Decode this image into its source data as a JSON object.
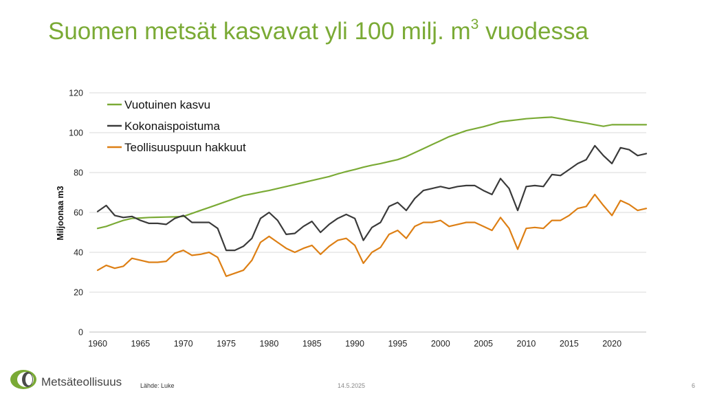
{
  "slide": {
    "title_main": "Suomen metsät kasvavat yli 100 milj. m",
    "title_sup": "3",
    "title_end": " vuodessa",
    "source": "Lähde: Luke",
    "date": "14.5.2025",
    "page": "6",
    "brand": "Metsäteollisuus",
    "title_color": "#7aaa35"
  },
  "chart_data": {
    "type": "line",
    "title": "",
    "xlabel": "",
    "ylabel": "Miljoonaa m3",
    "xlim": [
      1960,
      2024
    ],
    "ylim": [
      0,
      120
    ],
    "yticks": [
      0,
      20,
      40,
      60,
      80,
      100,
      120
    ],
    "xticks": [
      1960,
      1965,
      1970,
      1975,
      1980,
      1985,
      1990,
      1995,
      2000,
      2005,
      2010,
      2015,
      2020
    ],
    "grid": "horizontal",
    "legend_position": "top-left",
    "x": [
      1960,
      1961,
      1962,
      1963,
      1964,
      1965,
      1966,
      1967,
      1968,
      1969,
      1970,
      1971,
      1972,
      1973,
      1974,
      1975,
      1976,
      1977,
      1978,
      1979,
      1980,
      1981,
      1982,
      1983,
      1984,
      1985,
      1986,
      1987,
      1988,
      1989,
      1990,
      1991,
      1992,
      1993,
      1994,
      1995,
      1996,
      1997,
      1998,
      1999,
      2000,
      2001,
      2002,
      2003,
      2004,
      2005,
      2006,
      2007,
      2008,
      2009,
      2010,
      2011,
      2012,
      2013,
      2014,
      2015,
      2016,
      2017,
      2018,
      2019,
      2020,
      2021,
      2022,
      2023,
      2024
    ],
    "series": [
      {
        "name": "Vuotuinen kasvu",
        "color": "#7aaa35",
        "values": [
          52,
          53,
          54.5,
          56,
          57,
          57.2,
          57.5,
          57.6,
          57.7,
          57.8,
          58,
          59.5,
          61,
          62.5,
          64,
          65.5,
          67,
          68.5,
          69.3,
          70.2,
          71,
          72,
          73,
          74,
          75,
          76,
          77,
          78,
          79.3,
          80.5,
          81.5,
          82.7,
          83.7,
          84.5,
          85.5,
          86.5,
          88,
          90,
          92,
          94,
          96,
          98,
          99.5,
          101,
          102,
          103,
          104.2,
          105.5,
          106,
          106.5,
          107,
          107.3,
          107.6,
          107.8,
          107,
          106.2,
          105.5,
          104.8,
          104,
          103.2,
          104,
          104,
          104,
          104,
          104
        ]
      },
      {
        "name": "Kokonaispoistuma",
        "color": "#3a3a3a",
        "values": [
          60.5,
          63.5,
          58.5,
          57.5,
          58,
          56,
          54.5,
          54.5,
          54,
          57,
          58.5,
          55,
          55,
          55,
          52,
          41,
          41,
          43,
          47,
          57,
          60,
          56,
          49,
          49.5,
          53,
          55.5,
          50,
          54,
          57,
          59,
          57,
          46,
          52.5,
          55,
          63,
          65,
          61,
          67,
          71,
          72,
          73,
          72,
          73,
          73.5,
          73.5,
          71,
          69,
          77,
          72,
          61,
          73,
          73.5,
          73,
          79,
          78.5,
          81.5,
          84.5,
          86.5,
          93.5,
          88.5,
          84.5,
          92.5,
          91.5,
          88.5,
          89.5
        ]
      },
      {
        "name": "Teollisuuspuun hakkuut",
        "color": "#dd7f14",
        "values": [
          31,
          33.5,
          32,
          33,
          37,
          36,
          35,
          35,
          35.5,
          39.5,
          41,
          38.5,
          39,
          40,
          37.5,
          28,
          29.5,
          31,
          36,
          45,
          48,
          45,
          42,
          40,
          42,
          43.5,
          39,
          43,
          46,
          47,
          43.5,
          34.5,
          40,
          42.5,
          49,
          51,
          47,
          53,
          55,
          55,
          56,
          53,
          54,
          55,
          55,
          53,
          51,
          57.5,
          52,
          41.5,
          52,
          52.5,
          52,
          56,
          56,
          58.5,
          62,
          63,
          69,
          63.5,
          58.5,
          66,
          64,
          61,
          62
        ]
      }
    ]
  }
}
